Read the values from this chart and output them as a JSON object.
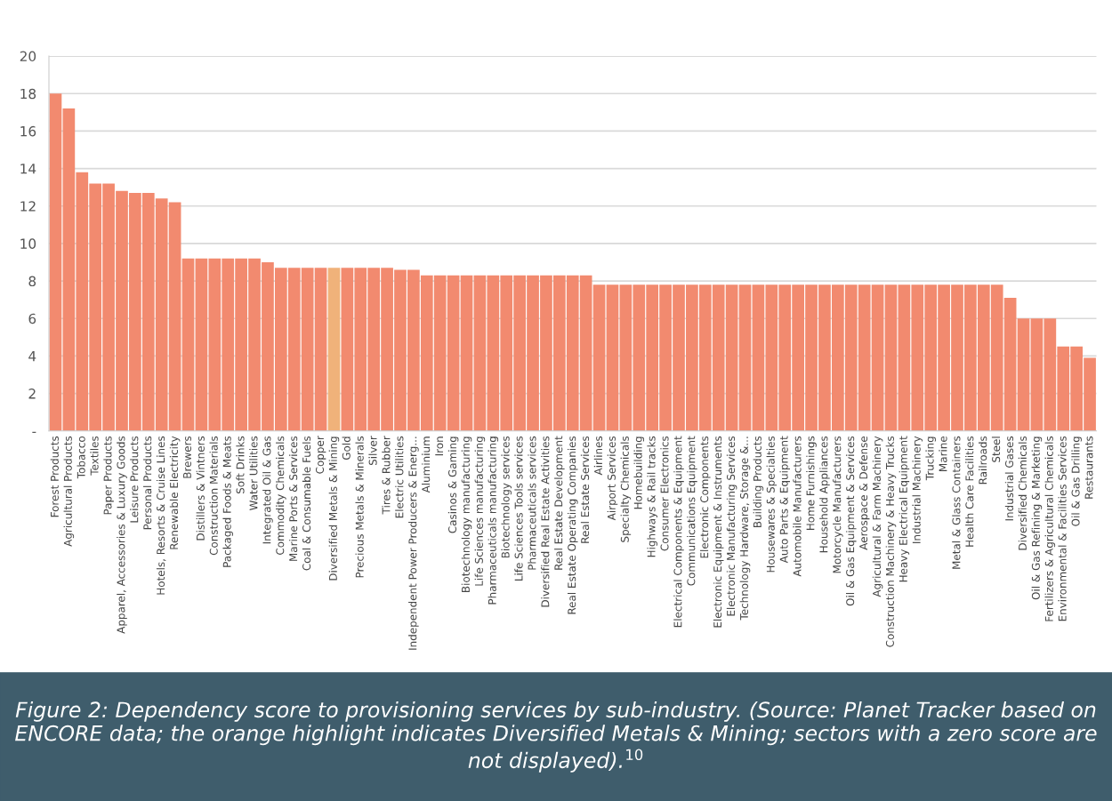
{
  "chart_data": {
    "type": "bar",
    "categories": [
      "Forest Products",
      "Agricultural Products",
      "Tobacco",
      "Textiles",
      "Paper Products",
      "Apparel, Accessories & Luxury Goods",
      "Leisure Products",
      "Personal Products",
      "Hotels, Resorts & Cruise Lines",
      "Renewable Electricity",
      "Brewers",
      "Distillers & Vintners",
      "Construction Materials",
      "Packaged Foods & Meats",
      "Soft Drinks",
      "Water Utilities",
      "Integrated Oil & Gas",
      "Commodity Chemicals",
      "Marine Ports & Services",
      "Coal & Consumable Fuels",
      "Copper",
      "Diversified Metals & Mining",
      "Gold",
      "Precious Metals & Minerals",
      "Silver",
      "Tires & Rubber",
      "Electric Utilities",
      "Independent Power Producers & Energ...",
      "Aluminium",
      "Iron",
      "Casinos & Gaming",
      "Biotechnology manufacturing",
      "Life Sciences manufacturing",
      "Pharmaceuticals manufacturing",
      "Biotechnology services",
      "Life Sciences Tools services",
      "Pharmaceuticals services",
      "Diversified Real Estate Activities",
      "Real Estate Development",
      "Real Estate Operating Companies",
      "Real Estate Services",
      "Airlines",
      "Airport Services",
      "Specialty Chemicals",
      "Homebuilding",
      "Highways & Rail tracks",
      "Consumer Electronics",
      "Electrical Components & Equipment",
      "Communications Equipment",
      "Electronic Components",
      "Electronic Equipment & Instruments",
      "Electronic Manufacturing Services",
      "Technology Hardware, Storage &...",
      "Building Products",
      "Housewares & Specialties",
      "Auto Parts & Equipment",
      "Automobile Manufacturers",
      "Home Furnishings",
      "Household Appliances",
      "Motorcycle Manufacturers",
      "Oil & Gas Equipment & Services",
      "Aerospace & Defense",
      "Agricultural & Farm Machinery",
      "Construction Machinery & Heavy Trucks",
      "Heavy Electrical Equipment",
      "Industrial Machinery",
      "Trucking",
      "Marine",
      "Metal & Glass Containers",
      "Health Care Facilities",
      "Railroads",
      "Steel",
      "Industrial Gases",
      "Diversified Chemicals",
      "Oil & Gas Refining & Marketing",
      "Fertilizers & Agricultural Chemicals",
      "Environmental & Facilities Services",
      "Oil & Gas Drilling",
      "Restaurants"
    ],
    "values": [
      18,
      17.2,
      13.8,
      13.2,
      13.2,
      12.8,
      12.7,
      12.7,
      12.4,
      12.2,
      9.2,
      9.2,
      9.2,
      9.2,
      9.2,
      9.2,
      9.0,
      8.7,
      8.7,
      8.7,
      8.7,
      8.7,
      8.7,
      8.7,
      8.7,
      8.7,
      8.6,
      8.6,
      8.3,
      8.3,
      8.3,
      8.3,
      8.3,
      8.3,
      8.3,
      8.3,
      8.3,
      8.3,
      8.3,
      8.3,
      8.3,
      7.8,
      7.8,
      7.8,
      7.8,
      7.8,
      7.8,
      7.8,
      7.8,
      7.8,
      7.8,
      7.8,
      7.8,
      7.8,
      7.8,
      7.8,
      7.8,
      7.8,
      7.8,
      7.8,
      7.8,
      7.8,
      7.8,
      7.8,
      7.8,
      7.8,
      7.8,
      7.8,
      7.8,
      7.8,
      7.8,
      7.8,
      7.1,
      6.0,
      6.0,
      6.0,
      4.5,
      4.5,
      3.9
    ],
    "colors": [
      "#f28a6f",
      "#f28a6f",
      "#f28a6f",
      "#f28a6f",
      "#f28a6f",
      "#f28a6f",
      "#f28a6f",
      "#f28a6f",
      "#f28a6f",
      "#f28a6f",
      "#f28a6f",
      "#f28a6f",
      "#f28a6f",
      "#f28a6f",
      "#f28a6f",
      "#f28a6f",
      "#f28a6f",
      "#f28a6f",
      "#f28a6f",
      "#f28a6f",
      "#f28a6f",
      "#f0b27a",
      "#f28a6f",
      "#f28a6f",
      "#f28a6f",
      "#f28a6f",
      "#f28a6f",
      "#f28a6f",
      "#f28a6f",
      "#f28a6f",
      "#f28a6f",
      "#f28a6f",
      "#f28a6f",
      "#f28a6f",
      "#f28a6f",
      "#f28a6f",
      "#f28a6f",
      "#f28a6f",
      "#f28a6f",
      "#f28a6f",
      "#f28a6f",
      "#f28a6f",
      "#f28a6f",
      "#f28a6f",
      "#f28a6f",
      "#f28a6f",
      "#f28a6f",
      "#f28a6f",
      "#f28a6f",
      "#f28a6f",
      "#f28a6f",
      "#f28a6f",
      "#f28a6f",
      "#f28a6f",
      "#f28a6f",
      "#f28a6f",
      "#f28a6f",
      "#f28a6f",
      "#f28a6f",
      "#f28a6f",
      "#f28a6f",
      "#f28a6f",
      "#f28a6f",
      "#f28a6f",
      "#f28a6f",
      "#f28a6f",
      "#f28a6f",
      "#f28a6f",
      "#f28a6f",
      "#f28a6f",
      "#f28a6f",
      "#f28a6f",
      "#f28a6f",
      "#f28a6f",
      "#f28a6f",
      "#f28a6f",
      "#f28a6f",
      "#f28a6f",
      "#f28a6f"
    ],
    "ylim": [
      0,
      20
    ],
    "yticks": [
      {
        "value": 0,
        "label": "-"
      },
      2,
      4,
      6,
      8,
      10,
      12,
      14,
      16,
      18,
      20
    ],
    "grid": "y",
    "annotations": [
      "Figure 2: Dependency score to provisioning services by sub-industry. (Source: Planet Tracker based on ENCORE data; the orange highlight indicates Diversified Metals & Mining; sectors with a zero score are not displayed).$^{10}$"
    ]
  }
}
